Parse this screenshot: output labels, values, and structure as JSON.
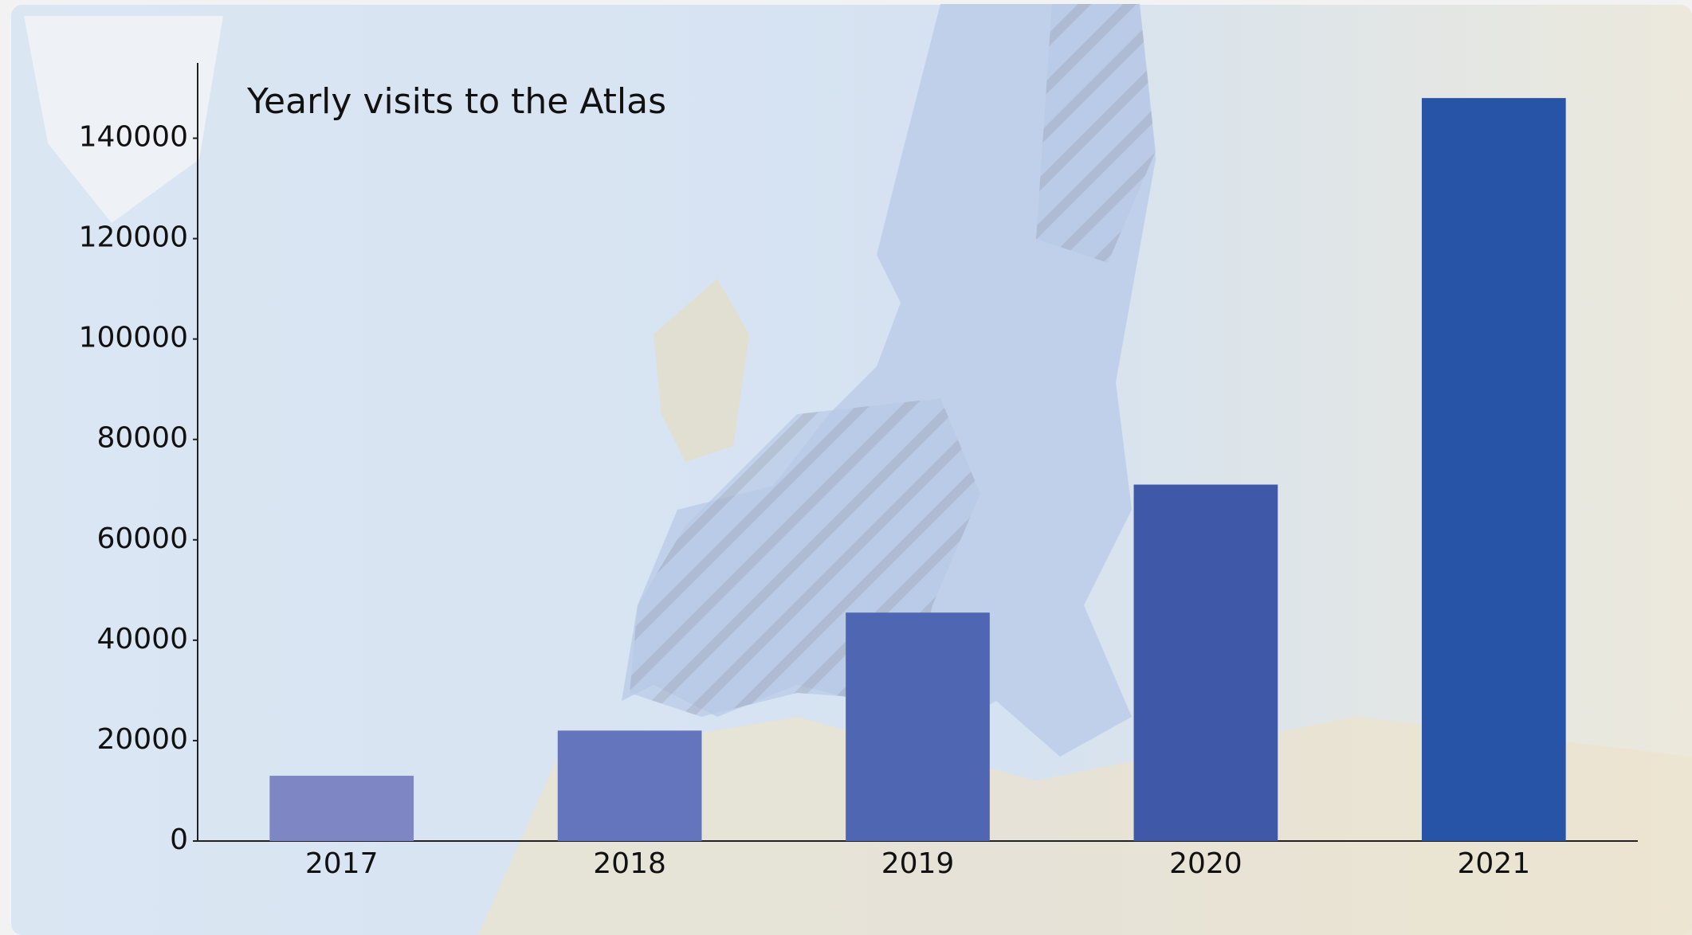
{
  "chart_data": {
    "type": "bar",
    "title": "Yearly visits to the Atlas",
    "categories": [
      "2017",
      "2018",
      "2019",
      "2020",
      "2021"
    ],
    "values": [
      13000,
      22000,
      45500,
      71000,
      148000
    ],
    "colors": [
      "#7f86c4",
      "#6575bd",
      "#4f67b3",
      "#3f58a8",
      "#2754a6"
    ],
    "ylim": [
      0,
      155000
    ],
    "yticks": [
      0,
      20000,
      40000,
      60000,
      80000,
      100000,
      120000,
      140000
    ],
    "grid": false
  }
}
